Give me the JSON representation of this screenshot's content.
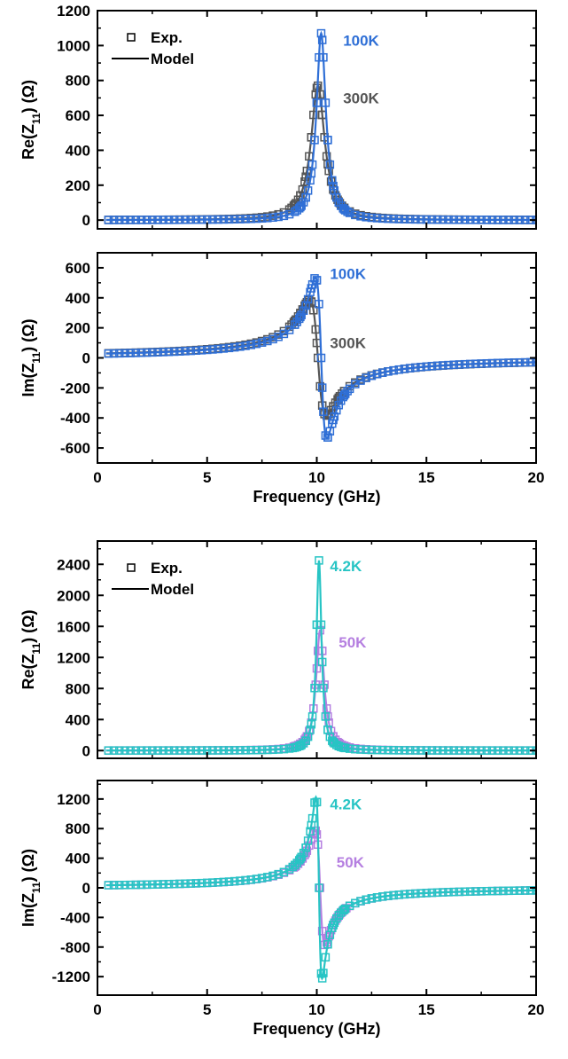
{
  "colors": {
    "k100": "#2f6fd6",
    "k300": "#555555",
    "k4_2": "#27c4c4",
    "k50": "#b57fe0",
    "axis": "#000000"
  },
  "chart_data": [
    {
      "type": "line",
      "panel": "top-re",
      "ylabel": "Re(Z11) (Ω)",
      "xlim": [
        0,
        20
      ],
      "ylim": [
        -50,
        1200
      ],
      "xticks": [
        0,
        5,
        10,
        15,
        20
      ],
      "xtick_labels": [
        "",
        "",
        "",
        "",
        ""
      ],
      "yticks": [
        0,
        200,
        400,
        600,
        800,
        1000,
        1200
      ],
      "ytick_labels": [
        "0",
        "200",
        "400",
        "600",
        "800",
        "1000",
        "1200"
      ],
      "xlabel": "",
      "legend": {
        "position": "top-left",
        "exp_label": "Exp.",
        "model_label": "Model"
      },
      "series": [
        {
          "name": "300K",
          "color_key": "k300",
          "f0": 10.05,
          "amp": 770,
          "gamma": 0.38,
          "label_pos": [
            11.2,
            700
          ]
        },
        {
          "name": "100K",
          "color_key": "k100",
          "f0": 10.2,
          "amp": 1070,
          "gamma": 0.26,
          "label_pos": [
            11.2,
            1030
          ]
        }
      ]
    },
    {
      "type": "line",
      "panel": "top-im",
      "ylabel": "Im(Z11) (Ω)",
      "xlim": [
        0,
        20
      ],
      "ylim": [
        -700,
        700
      ],
      "xticks": [
        0,
        5,
        10,
        15,
        20
      ],
      "xtick_labels": [
        "0",
        "5",
        "10",
        "15",
        "20"
      ],
      "yticks": [
        -600,
        -400,
        -200,
        0,
        200,
        400,
        600
      ],
      "ytick_labels": [
        "-600",
        "-400",
        "-200",
        "0",
        "200",
        "400",
        "600"
      ],
      "xlabel": "Frequency (GHz)",
      "series": [
        {
          "name": "300K",
          "color_key": "k300",
          "f0": 10.05,
          "amp": 770,
          "gamma": 0.38,
          "label_pos": [
            10.6,
            100
          ]
        },
        {
          "name": "100K",
          "color_key": "k100",
          "f0": 10.2,
          "amp": 1070,
          "gamma": 0.26,
          "label_pos": [
            10.6,
            560
          ]
        }
      ]
    },
    {
      "type": "line",
      "panel": "bottom-re",
      "ylabel": "Re(Z11) (Ω)",
      "xlim": [
        0,
        20
      ],
      "ylim": [
        -100,
        2700
      ],
      "xticks": [
        0,
        5,
        10,
        15,
        20
      ],
      "xtick_labels": [
        "",
        "",
        "",
        "",
        ""
      ],
      "yticks": [
        0,
        400,
        800,
        1200,
        1600,
        2000,
        2400
      ],
      "ytick_labels": [
        "0",
        "400",
        "800",
        "1200",
        "1600",
        "2000",
        "2400"
      ],
      "xlabel": "",
      "legend": {
        "position": "top-left",
        "exp_label": "Exp.",
        "model_label": "Model"
      },
      "series": [
        {
          "name": "50K",
          "color_key": "k50",
          "f0": 10.15,
          "amp": 1550,
          "gamma": 0.22,
          "label_pos": [
            11.0,
            1400
          ]
        },
        {
          "name": "4.2K",
          "color_key": "k4_2",
          "f0": 10.1,
          "amp": 2450,
          "gamma": 0.14,
          "label_pos": [
            10.6,
            2380
          ]
        }
      ]
    },
    {
      "type": "line",
      "panel": "bottom-im",
      "ylabel": "Im(Z11) (Ω)",
      "xlim": [
        0,
        20
      ],
      "ylim": [
        -1450,
        1450
      ],
      "xticks": [
        0,
        5,
        10,
        15,
        20
      ],
      "xtick_labels": [
        "0",
        "5",
        "10",
        "15",
        "20"
      ],
      "yticks": [
        -1200,
        -800,
        -400,
        0,
        400,
        800,
        1200
      ],
      "ytick_labels": [
        "-1200",
        "-800",
        "-400",
        "0",
        "400",
        "800",
        "1200"
      ],
      "xlabel": "Frequency (GHz)",
      "series": [
        {
          "name": "50K",
          "color_key": "k50",
          "f0": 10.15,
          "amp": 1550,
          "gamma": 0.22,
          "label_pos": [
            10.9,
            350
          ]
        },
        {
          "name": "4.2K",
          "color_key": "k4_2",
          "f0": 10.1,
          "amp": 2450,
          "gamma": 0.14,
          "label_pos": [
            10.6,
            1130
          ]
        }
      ]
    }
  ]
}
